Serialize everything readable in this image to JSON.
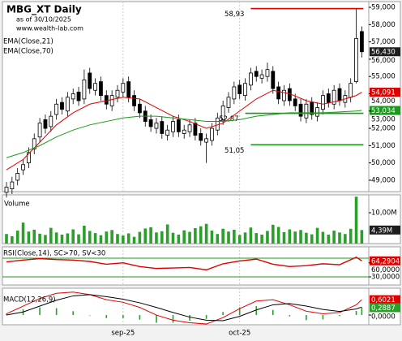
{
  "chart_data": [
    {
      "type": "candlestick",
      "title": "MBG_XT Daily",
      "subtitle": "as of 30/10/2025",
      "source": "www.wealth-lab.com",
      "open": [
        48.3,
        48.5,
        49.0,
        49.6,
        50.0,
        50.8,
        51.5,
        52.5,
        52.1,
        52.8,
        53.5,
        53.0,
        53.7,
        54.1,
        53.7,
        55.2,
        54.2,
        54.7,
        53.9,
        53.3,
        53.8,
        54.1,
        54.7,
        53.9,
        53.4,
        53.0,
        52.5,
        52.0,
        52.4,
        51.6,
        51.8,
        52.5,
        51.7,
        51.8,
        52.3,
        51.7,
        51.2,
        51.3,
        51.9,
        52.5,
        53.2,
        53.7,
        54.5,
        53.9,
        54.5,
        55.3,
        54.9,
        55.0,
        55.3,
        54.4,
        53.6,
        54.3,
        53.7,
        53.4,
        52.6,
        53.5,
        52.7,
        53.1,
        54.0,
        53.4,
        54.3,
        53.5,
        53.8,
        54.7,
        57.6
      ],
      "high": [
        48.9,
        49.2,
        49.7,
        50.2,
        50.9,
        51.7,
        52.6,
        52.8,
        53.0,
        53.7,
        53.8,
        54.1,
        54.3,
        54.4,
        55.4,
        55.5,
        54.9,
        55.0,
        54.2,
        54.2,
        54.5,
        54.9,
        55.0,
        54.2,
        53.7,
        53.3,
        52.8,
        52.6,
        52.7,
        52.2,
        52.7,
        52.8,
        52.2,
        52.5,
        52.6,
        52.0,
        51.7,
        52.3,
        52.9,
        53.6,
        54.1,
        54.7,
        54.8,
        54.9,
        55.5,
        55.6,
        55.4,
        55.8,
        55.6,
        54.7,
        54.5,
        54.6,
        54.0,
        53.7,
        53.7,
        53.8,
        53.5,
        54.2,
        54.3,
        54.5,
        54.6,
        54.2,
        54.9,
        58.93,
        57.9
      ],
      "low": [
        48.0,
        48.2,
        48.7,
        49.3,
        49.7,
        50.5,
        51.2,
        51.7,
        51.8,
        52.5,
        52.8,
        52.7,
        53.4,
        53.3,
        53.4,
        54.0,
        53.9,
        53.6,
        53.1,
        53.0,
        53.5,
        53.8,
        53.5,
        53.0,
        52.6,
        52.1,
        51.8,
        51.7,
        51.4,
        51.3,
        51.5,
        51.5,
        51.4,
        51.5,
        51.3,
        51.0,
        50.0,
        51.0,
        51.6,
        52.2,
        52.9,
        53.4,
        53.7,
        53.6,
        54.2,
        54.7,
        54.6,
        54.7,
        54.0,
        53.4,
        53.3,
        53.3,
        53.0,
        52.4,
        52.3,
        52.5,
        52.4,
        52.8,
        53.2,
        53.1,
        53.3,
        53.2,
        53.5,
        54.6,
        56.1
      ],
      "close": [
        48.6,
        48.9,
        49.4,
        49.9,
        50.6,
        51.4,
        52.3,
        52.0,
        52.7,
        53.4,
        53.1,
        53.8,
        54.0,
        53.6,
        54.8,
        54.3,
        54.6,
        53.9,
        53.4,
        53.9,
        54.2,
        54.6,
        53.8,
        53.3,
        52.9,
        52.4,
        52.1,
        52.3,
        51.7,
        51.9,
        52.4,
        51.8,
        51.9,
        52.2,
        51.6,
        51.3,
        51.4,
        52.0,
        52.6,
        53.3,
        53.8,
        54.4,
        54.0,
        54.6,
        55.2,
        55.0,
        55.1,
        55.4,
        54.3,
        53.7,
        54.2,
        53.6,
        53.3,
        52.7,
        53.4,
        52.8,
        53.2,
        53.9,
        53.5,
        54.2,
        53.6,
        53.9,
        54.6,
        57.2,
        56.43
      ],
      "close_label": "56,430",
      "up_color": "#ffffff",
      "down_color": "#000000",
      "label_color": "#1e1e1e",
      "ylim": [
        48.34,
        59.33
      ],
      "yticks": [
        {
          "value": 49,
          "label": "49,000"
        },
        {
          "value": 50,
          "label": "50,000"
        },
        {
          "value": 51,
          "label": "51,000"
        },
        {
          "value": 52,
          "label": "52,000"
        },
        {
          "value": 53,
          "label": "53,000"
        },
        {
          "value": 54,
          "label": "54,000"
        },
        {
          "value": 55,
          "label": "55,000"
        },
        {
          "value": 56,
          "label": "56,000"
        },
        {
          "value": 57,
          "label": "57,000"
        },
        {
          "value": 58,
          "label": "58,000"
        },
        {
          "value": 59,
          "label": "59,000"
        }
      ],
      "series": [
        {
          "name": "EMA(Close,21)",
          "color": "#e00000",
          "x": [
            0,
            3,
            6,
            9,
            12,
            15,
            18,
            21,
            24,
            27,
            30,
            33,
            36,
            39,
            42,
            45,
            48,
            51,
            54,
            57,
            60,
            63,
            64
          ],
          "values": [
            49.6,
            50.2,
            51.2,
            52.2,
            52.9,
            53.4,
            53.6,
            53.8,
            53.7,
            53.2,
            52.7,
            52.4,
            52.0,
            52.3,
            53.0,
            53.7,
            54.2,
            54.0,
            53.6,
            53.4,
            53.6,
            53.9,
            54.091
          ],
          "value_label": "54,091"
        },
        {
          "name": "EMA(Close,70)",
          "color": "#1a9a1a",
          "x": [
            0,
            3,
            6,
            9,
            12,
            15,
            18,
            21,
            24,
            27,
            30,
            33,
            36,
            39,
            42,
            45,
            48,
            51,
            54,
            57,
            60,
            63,
            64
          ],
          "values": [
            50.3,
            50.6,
            51.0,
            51.5,
            51.9,
            52.2,
            52.4,
            52.6,
            52.7,
            52.7,
            52.6,
            52.5,
            52.4,
            52.4,
            52.5,
            52.7,
            52.8,
            52.9,
            52.9,
            52.9,
            52.95,
            53.0,
            53.034
          ],
          "value_label": "53,034"
        }
      ],
      "levels": [
        {
          "value": 58.93,
          "label": "58,93",
          "color": "#e00000",
          "x_start": 44
        },
        {
          "value": 52.87,
          "label": "52,87",
          "color": "#1a9a1a",
          "x_start": 43
        },
        {
          "value": 51.05,
          "label": "51,05",
          "color": "#1a9a1a",
          "x_start": 44
        }
      ]
    },
    {
      "type": "bar",
      "title": "Volume",
      "color": "#2aa02a",
      "label_color": "#1e1e1e",
      "values": [
        3.1,
        2.4,
        4.2,
        6.8,
        3.9,
        4.5,
        3.2,
        2.8,
        5.1,
        3.6,
        2.9,
        3.3,
        4.6,
        3.0,
        5.8,
        4.1,
        3.4,
        2.7,
        3.9,
        4.4,
        3.1,
        2.6,
        3.3,
        2.2,
        3.8,
        4.9,
        5.3,
        3.6,
        4.0,
        6.2,
        3.5,
        2.9,
        4.3,
        3.8,
        5.0,
        5.6,
        6.4,
        4.2,
        3.1,
        4.8,
        3.9,
        4.5,
        2.8,
        3.6,
        5.2,
        3.4,
        2.9,
        4.1,
        6.1,
        5.4,
        3.7,
        4.6,
        3.9,
        4.4,
        3.5,
        3.0,
        5.1,
        3.8,
        2.9,
        4.2,
        3.6,
        3.1,
        4.8,
        15.2,
        4.39
      ],
      "value_label": "4,39M",
      "ylim": [
        0,
        15.8
      ],
      "yticks": [
        {
          "value": 10,
          "label": "10,00M"
        }
      ]
    },
    {
      "type": "line",
      "title": "RSI(Close,14), SC>70, SV<30",
      "levels": [
        70,
        30
      ],
      "level_color": "#1a9a1a",
      "ylim": [
        12.6,
        94.3
      ],
      "yticks": [
        {
          "value": 60,
          "label": "60,0000"
        },
        {
          "value": 30,
          "label": "30,0000"
        }
      ],
      "series": [
        {
          "color": "#e00000",
          "x": [
            0,
            3,
            6,
            9,
            12,
            15,
            18,
            21,
            24,
            27,
            30,
            33,
            36,
            39,
            42,
            45,
            48,
            51,
            54,
            57,
            60,
            63,
            64
          ],
          "values": [
            62,
            66,
            69,
            67,
            66,
            63,
            57,
            60,
            52,
            48,
            49,
            50,
            45,
            58,
            64,
            68,
            57,
            52,
            54,
            58,
            56,
            72,
            64.2904
          ],
          "value_label": "64,2904"
        }
      ]
    },
    {
      "type": "macd",
      "title": "MACD(12,26,9)",
      "ylim": [
        -0.38,
        1.05
      ],
      "yticks": [
        {
          "value": 0,
          "label": "0,0000"
        }
      ],
      "series": [
        {
          "color": "#e00000",
          "x": [
            0,
            3,
            6,
            9,
            12,
            15,
            18,
            21,
            24,
            27,
            30,
            33,
            36,
            39,
            42,
            45,
            48,
            51,
            54,
            57,
            60,
            63,
            64
          ],
          "values": [
            0.05,
            0.35,
            0.65,
            0.85,
            0.9,
            0.8,
            0.6,
            0.5,
            0.3,
            0.0,
            -0.2,
            -0.3,
            -0.35,
            -0.1,
            0.25,
            0.55,
            0.6,
            0.4,
            0.15,
            0.05,
            0.1,
            0.4,
            0.6021
          ],
          "value_label": "0,6021"
        },
        {
          "color": "#000000",
          "x": [
            0,
            3,
            6,
            9,
            12,
            15,
            18,
            21,
            24,
            27,
            30,
            33,
            36,
            39,
            42,
            45,
            48,
            51,
            54,
            57,
            60,
            63,
            64
          ],
          "values": [
            0.0,
            0.12,
            0.35,
            0.58,
            0.75,
            0.8,
            0.72,
            0.62,
            0.48,
            0.3,
            0.1,
            -0.08,
            -0.2,
            -0.22,
            -0.05,
            0.2,
            0.4,
            0.45,
            0.35,
            0.22,
            0.14,
            0.24,
            0.3134
          ]
        }
      ],
      "histogram": {
        "color": "#2aa02a",
        "x": [
          0,
          3,
          6,
          9,
          12,
          15,
          18,
          21,
          24,
          27,
          30,
          33,
          36,
          39,
          42,
          45,
          48,
          51,
          54,
          57,
          60,
          63,
          64
        ],
        "values": [
          0.05,
          0.23,
          0.3,
          0.27,
          0.15,
          0.0,
          -0.12,
          -0.12,
          -0.18,
          -0.3,
          -0.3,
          -0.22,
          -0.15,
          0.12,
          0.3,
          0.35,
          0.2,
          -0.05,
          -0.2,
          -0.17,
          -0.04,
          0.16,
          0.2887
        ],
        "value_label": "0,2887"
      },
      "xticks": [
        {
          "value": 21,
          "label": "sep-25"
        },
        {
          "value": 42,
          "label": "oct-25"
        }
      ]
    }
  ]
}
